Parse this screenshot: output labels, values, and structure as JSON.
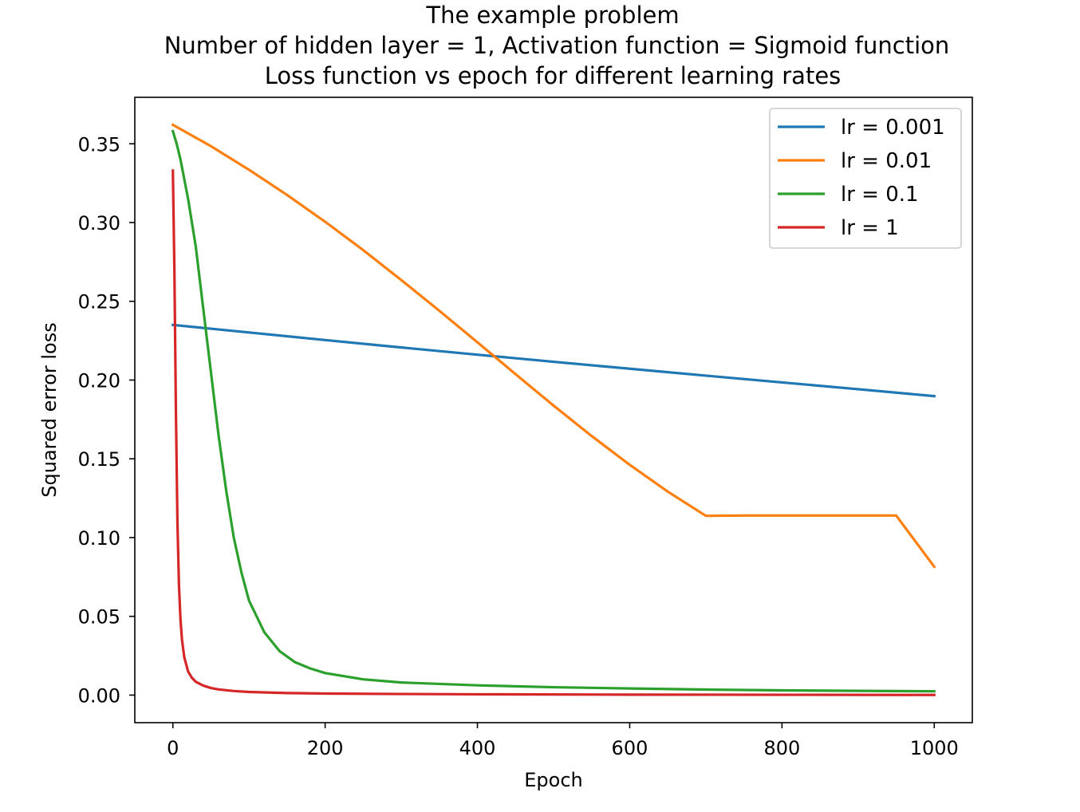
{
  "chart_data": {
    "type": "line",
    "title_lines": [
      "The example problem",
      "Number of hidden layer = 1, Activation function = Sigmoid function",
      "Loss function vs epoch for different learning rates"
    ],
    "xlabel": "Epoch",
    "ylabel": "Squared error loss",
    "xlim": [
      -50,
      1050
    ],
    "ylim": [
      -0.0175,
      0.3795
    ],
    "xticks": [
      0,
      200,
      400,
      600,
      800,
      1000
    ],
    "xtick_labels": [
      "0",
      "200",
      "400",
      "600",
      "800",
      "1000"
    ],
    "yticks": [
      0.0,
      0.05,
      0.1,
      0.15,
      0.2,
      0.25,
      0.3,
      0.35
    ],
    "ytick_labels": [
      "0.00",
      "0.05",
      "0.10",
      "0.15",
      "0.20",
      "0.25",
      "0.30",
      "0.35"
    ],
    "grid": false,
    "legend_position": "top-right",
    "series": [
      {
        "name": "lr = 0.001",
        "color": "#1f77b4",
        "x": [
          0,
          100,
          200,
          300,
          400,
          500,
          600,
          700,
          800,
          900,
          1000
        ],
        "y": [
          0.235,
          0.2302,
          0.2254,
          0.2207,
          0.2161,
          0.2116,
          0.2072,
          0.2028,
          0.1985,
          0.1942,
          0.1898
        ]
      },
      {
        "name": "lr = 0.01",
        "color": "#ff7f0e",
        "x": [
          0,
          50,
          100,
          150,
          200,
          250,
          300,
          350,
          400,
          450,
          500,
          550,
          600,
          650,
          700,
          750,
          800,
          850,
          900,
          950,
          1000
        ],
        "y": [
          0.362,
          0.3485,
          0.3335,
          0.3175,
          0.3005,
          0.2825,
          0.2635,
          0.244,
          0.224,
          0.2038,
          0.1838,
          0.1645,
          0.1462,
          0.1292,
          0.1138,
          0.114,
          0.114,
          0.114,
          0.114,
          0.114,
          0.0815
        ]
      },
      {
        "name": "lr = 0.1",
        "color": "#2ca02c",
        "x": [
          0,
          5,
          10,
          20,
          30,
          40,
          50,
          60,
          70,
          80,
          90,
          100,
          120,
          140,
          160,
          180,
          200,
          250,
          300,
          400,
          500,
          600,
          700,
          800,
          900,
          1000
        ],
        "y": [
          0.358,
          0.35,
          0.34,
          0.315,
          0.285,
          0.245,
          0.205,
          0.165,
          0.13,
          0.1,
          0.078,
          0.06,
          0.04,
          0.028,
          0.021,
          0.017,
          0.014,
          0.01,
          0.008,
          0.0062,
          0.005,
          0.0042,
          0.0035,
          0.003,
          0.0027,
          0.0024
        ]
      },
      {
        "name": "lr = 1",
        "color": "#d62728",
        "x": [
          0,
          2,
          4,
          6,
          8,
          10,
          12,
          15,
          20,
          25,
          30,
          40,
          50,
          60,
          80,
          100,
          150,
          200,
          300,
          400,
          600,
          800,
          1000
        ],
        "y": [
          0.333,
          0.27,
          0.18,
          0.11,
          0.07,
          0.048,
          0.035,
          0.024,
          0.015,
          0.011,
          0.0085,
          0.006,
          0.0045,
          0.0036,
          0.0026,
          0.002,
          0.0013,
          0.001,
          0.0007,
          0.0005,
          0.0003,
          0.0002,
          0.0001
        ]
      }
    ]
  }
}
